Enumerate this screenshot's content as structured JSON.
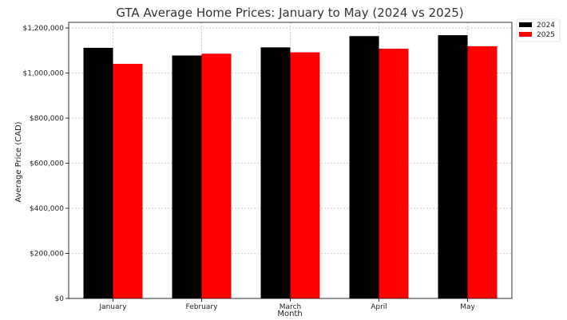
{
  "chart_data": {
    "type": "bar",
    "title": "GTA Average Home Prices: January to May (2024 vs 2025)",
    "xlabel": "Month",
    "ylabel": "Average Price (CAD)",
    "categories": [
      "January",
      "February",
      "March",
      "April",
      "May"
    ],
    "series": [
      {
        "name": "2024",
        "color": "#000000",
        "values": [
          1112000,
          1078000,
          1114000,
          1164000,
          1168000
        ]
      },
      {
        "name": "2025",
        "color": "#ff0000",
        "values": [
          1041000,
          1086000,
          1092000,
          1108000,
          1119000
        ]
      }
    ],
    "ylim": [
      0,
      1225000
    ],
    "yticks": [
      0,
      200000,
      400000,
      600000,
      800000,
      1000000,
      1200000
    ],
    "ytick_labels": [
      "$0",
      "$200,000",
      "$400,000",
      "$600,000",
      "$800,000",
      "$1,000,000",
      "$1,200,000"
    ],
    "grid": true,
    "legend_position": "top-right"
  }
}
